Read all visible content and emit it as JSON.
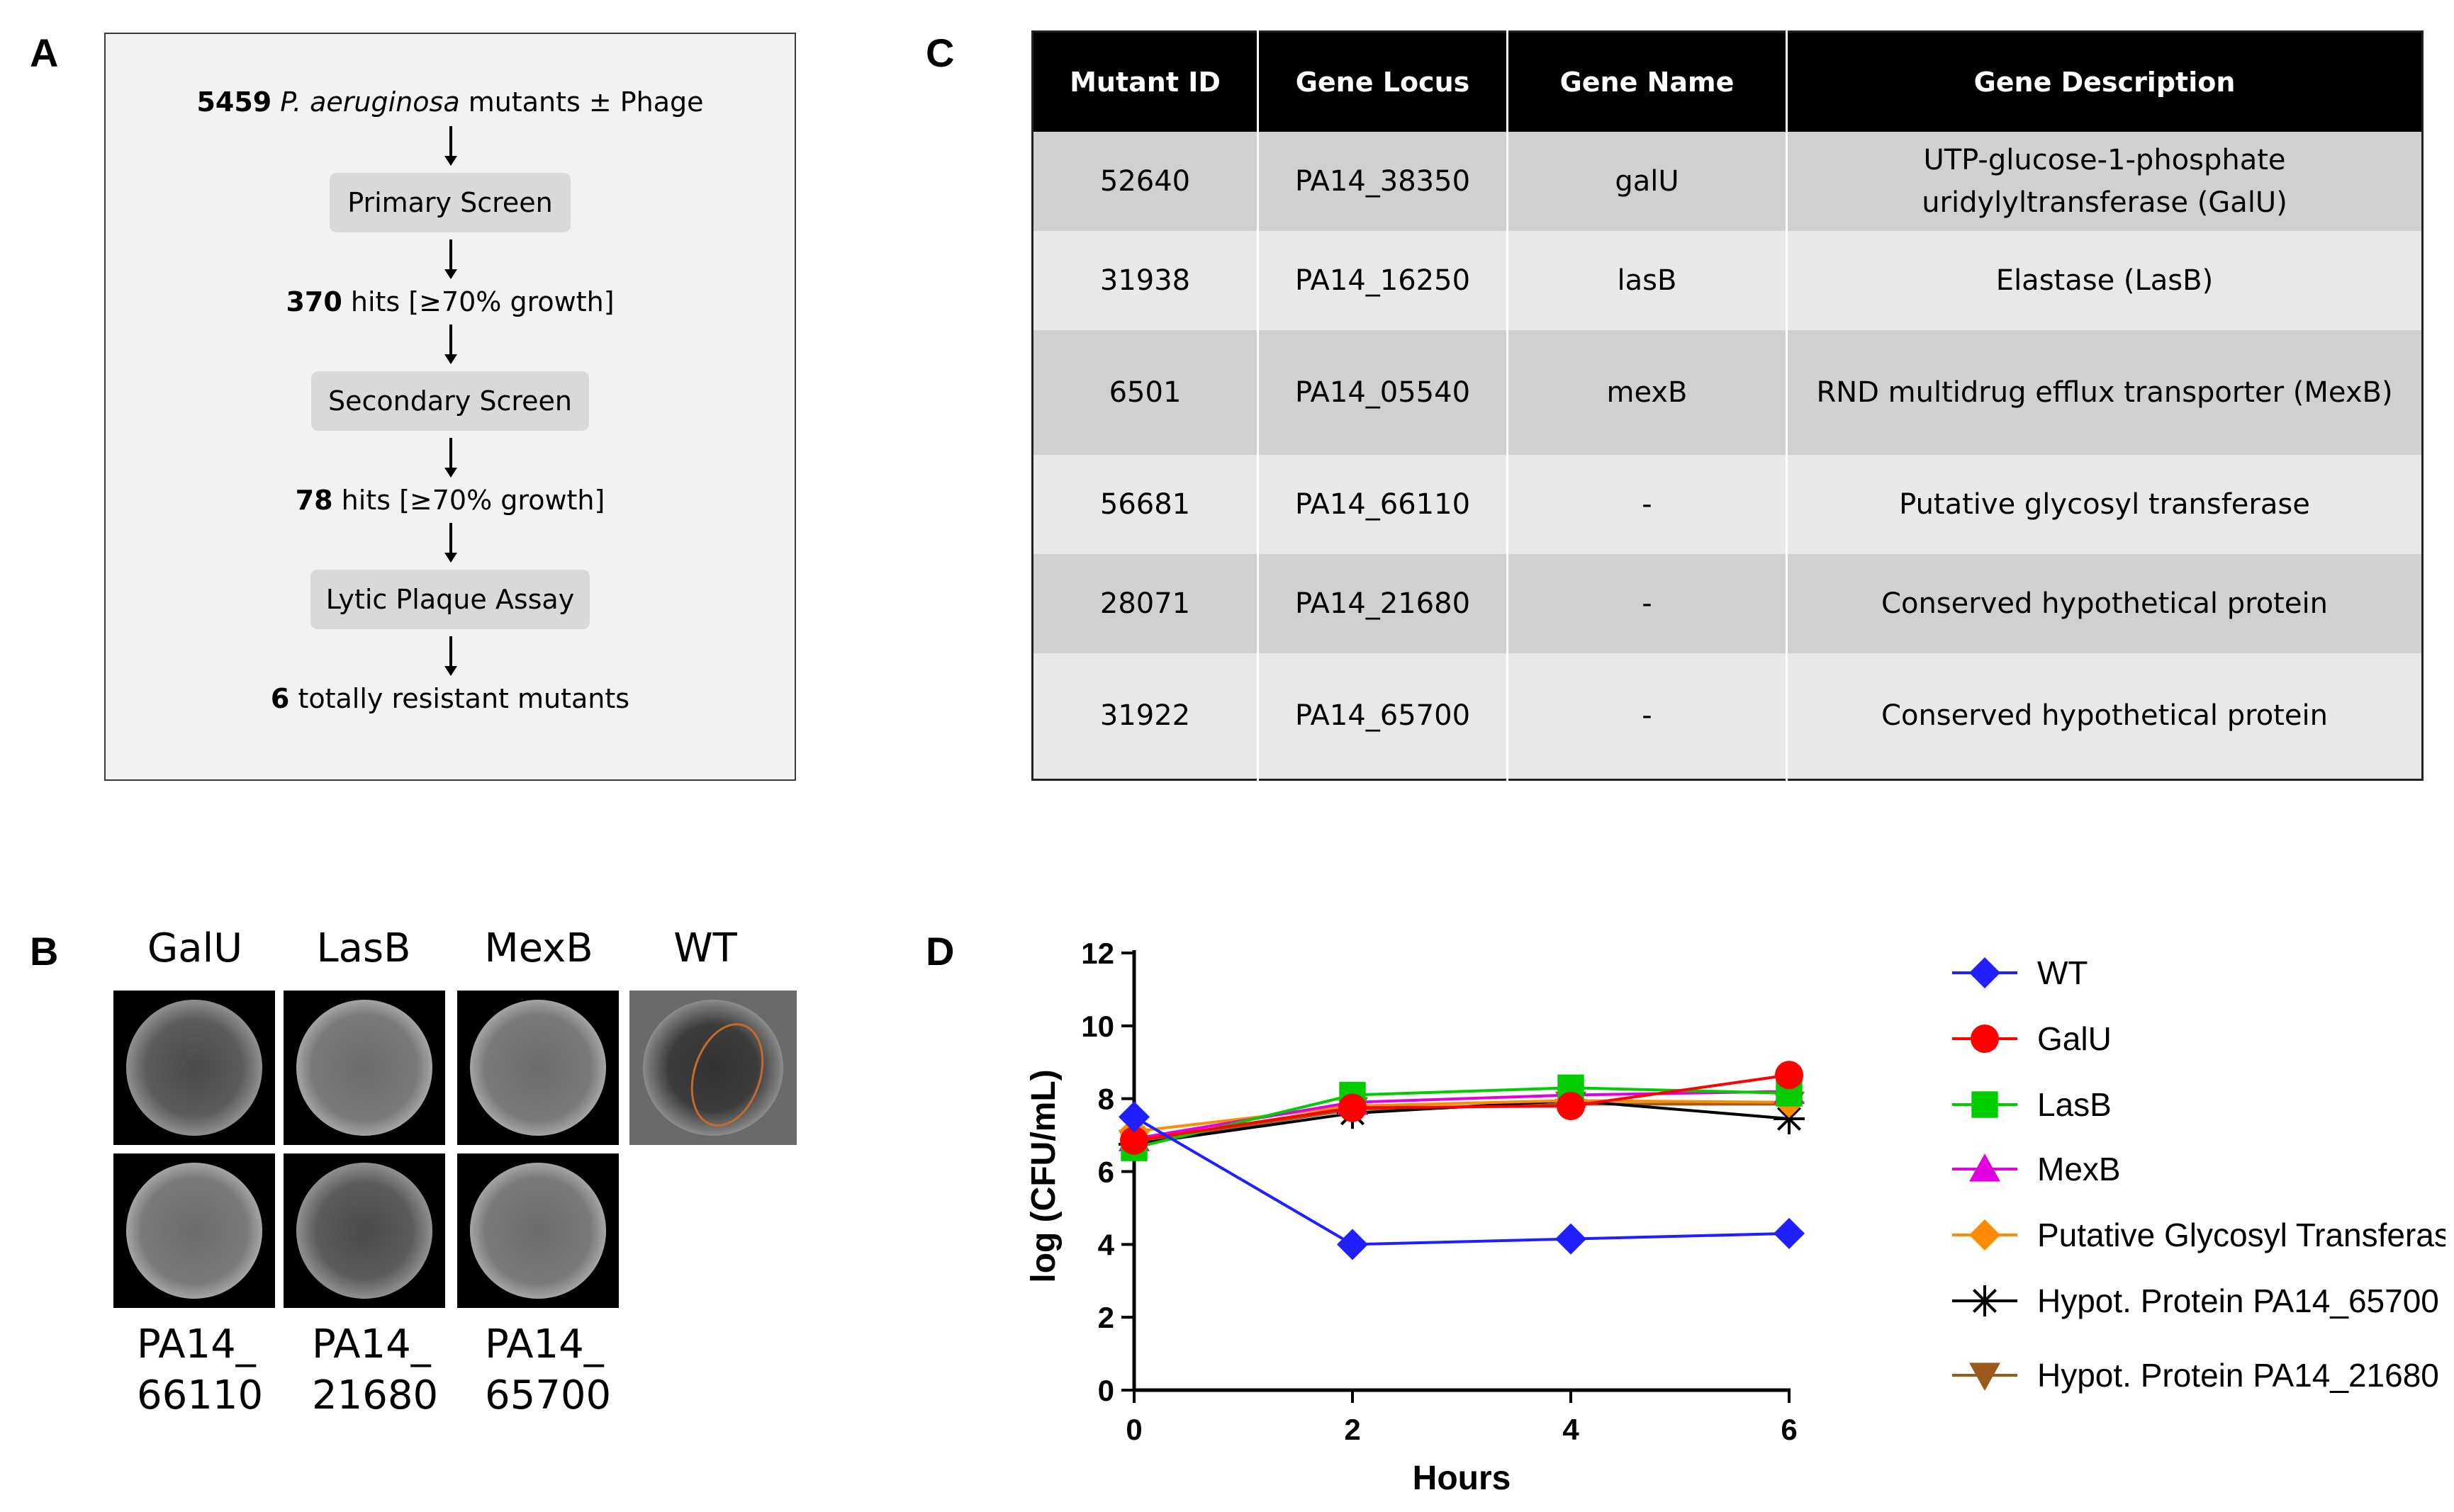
{
  "panel_labels": {
    "a": "A",
    "b": "B",
    "c": "C",
    "d": "D"
  },
  "flowchart": {
    "start_count": "5459",
    "start_species": "P. aeruginosa",
    "start_rest": "mutants ± Phage",
    "step1": "Primary Screen",
    "hits1_count": "370",
    "hits1_rest": "hits [≥70% growth]",
    "step2": "Secondary Screen",
    "hits2_count": "78",
    "hits2_rest": "hits [≥70% growth]",
    "step3": "Lytic Plaque Assay",
    "final_count": "6",
    "final_rest": "totally resistant mutants"
  },
  "plates": {
    "top_labels": [
      "GalU",
      "LasB",
      "MexB",
      "WT"
    ],
    "bottom_labels": [
      {
        "line1": "PA14_",
        "line2": "66110"
      },
      {
        "line1": "PA14_",
        "line2": "21680"
      },
      {
        "line1": "PA14_",
        "line2": "65700"
      }
    ]
  },
  "table": {
    "headers": [
      "Mutant ID",
      "Gene Locus",
      "Gene Name",
      "Gene Description"
    ],
    "rows": [
      {
        "id": "52640",
        "locus": "PA14_38350",
        "name": "galU",
        "desc_line1": "UTP-glucose-1-phosphate",
        "desc_line2": "uridylyltransferase (GalU)"
      },
      {
        "id": "31938",
        "locus": "PA14_16250",
        "name": "lasB",
        "desc_line1": "Elastase (LasB)",
        "desc_line2": ""
      },
      {
        "id": "6501",
        "locus": "PA14_05540",
        "name": "mexB",
        "desc_line1": "RND multidrug efflux transporter (MexB)",
        "desc_line2": ""
      },
      {
        "id": "56681",
        "locus": "PA14_66110",
        "name": "-",
        "desc_line1": "Putative glycosyl transferase",
        "desc_line2": ""
      },
      {
        "id": "28071",
        "locus": "PA14_21680",
        "name": "-",
        "desc_line1": "Conserved hypothetical protein",
        "desc_line2": ""
      },
      {
        "id": "31922",
        "locus": "PA14_65700",
        "name": "-",
        "desc_line1": "Conserved hypothetical protein",
        "desc_line2": ""
      }
    ]
  },
  "chart_data": {
    "type": "line",
    "title": "",
    "xlabel": "Hours",
    "ylabel": "log (CFU/mL)",
    "x": [
      0,
      2,
      4,
      6
    ],
    "xlim": [
      0,
      6
    ],
    "ylim": [
      0,
      12
    ],
    "xticks": [
      0,
      2,
      4,
      6
    ],
    "yticks": [
      0,
      2,
      4,
      6,
      8,
      10,
      12
    ],
    "legend_position": "right",
    "series": [
      {
        "name": "WT",
        "color": "#1f1fff",
        "marker": "diamond",
        "values": [
          7.5,
          4.0,
          4.15,
          4.3
        ]
      },
      {
        "name": "GalU",
        "color": "#ff0000",
        "marker": "circle",
        "values": [
          6.85,
          7.75,
          7.8,
          8.65
        ]
      },
      {
        "name": "LasB",
        "color": "#00cc00",
        "marker": "square",
        "values": [
          6.65,
          8.1,
          8.3,
          8.15
        ]
      },
      {
        "name": "MexB",
        "color": "#e000e0",
        "marker": "triangle-up",
        "values": [
          6.9,
          7.9,
          8.1,
          8.2
        ]
      },
      {
        "name": "Putative Glycosyl Transferase",
        "color": "#ff8c00",
        "marker": "diamond",
        "values": [
          7.1,
          7.8,
          7.95,
          7.9
        ]
      },
      {
        "name": "Hypot. Protein PA14_65700",
        "color": "#000000",
        "marker": "star",
        "values": [
          6.75,
          7.6,
          7.95,
          7.45
        ]
      },
      {
        "name": "Hypot. Protein PA14_21680",
        "color": "#9c5a1a",
        "marker": "triangle-down",
        "values": [
          6.8,
          7.7,
          7.85,
          7.85
        ]
      }
    ]
  }
}
